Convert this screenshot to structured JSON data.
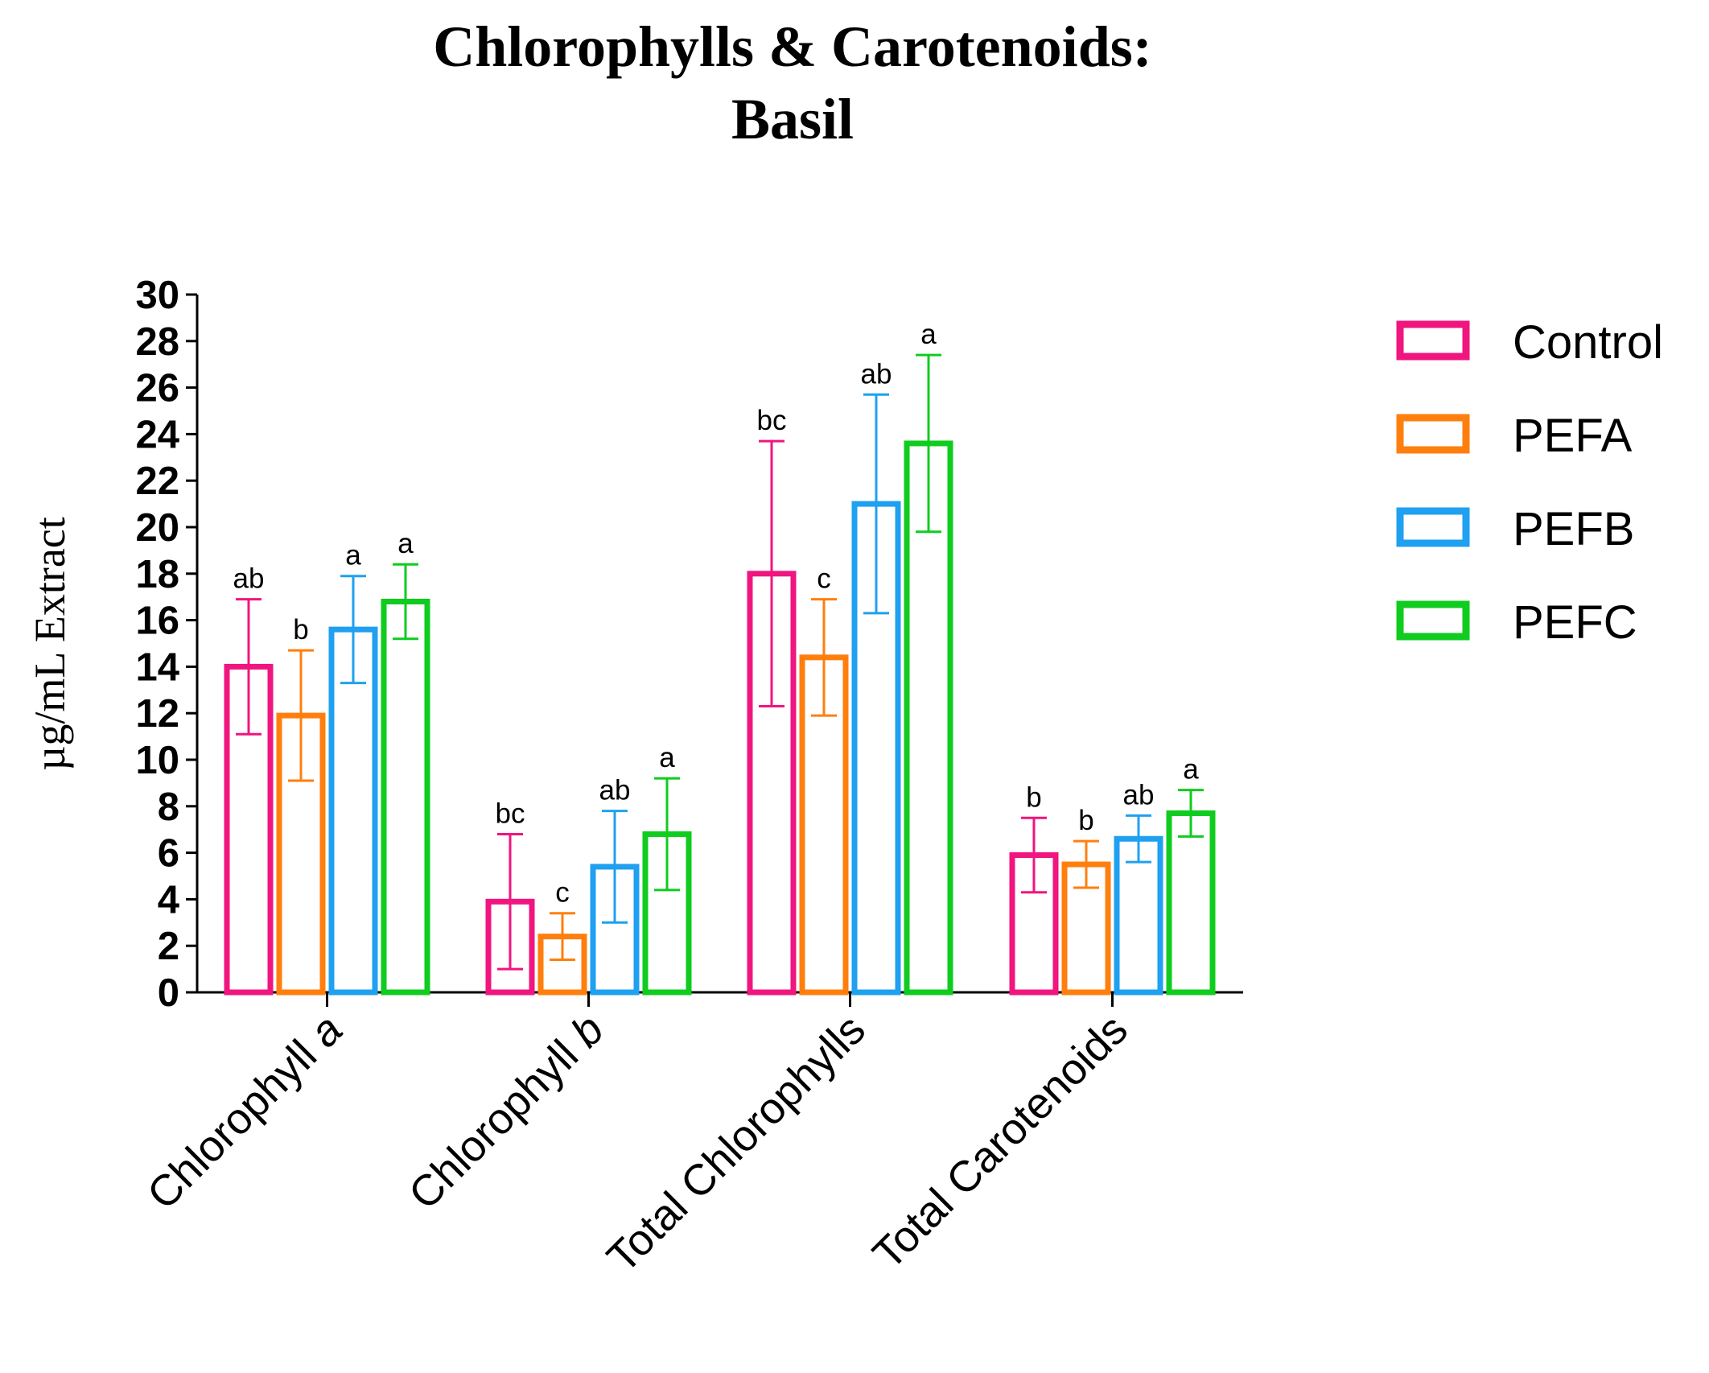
{
  "chart_data": {
    "type": "bar",
    "title": [
      "Chlorophylls & Carotenoids:",
      "Basil"
    ],
    "xlabel": "",
    "ylabel": "µg/mL Extract",
    "ylim": [
      0,
      30
    ],
    "yticks": [
      0,
      2,
      4,
      6,
      8,
      10,
      12,
      14,
      16,
      18,
      20,
      22,
      24,
      26,
      28,
      30
    ],
    "grid": false,
    "legend_position": "right",
    "categories": [
      {
        "label": "Chlorophyll ",
        "italic": "a"
      },
      {
        "label": "Chlorophyll ",
        "italic": "b"
      },
      {
        "label": "Total Chlorophylls",
        "italic": ""
      },
      {
        "label": "Total Carotenoids",
        "italic": ""
      }
    ],
    "series": [
      {
        "name": "Control",
        "color": "#f0157f",
        "values": [
          14.0,
          3.9,
          18.0,
          5.9
        ],
        "errors": [
          2.9,
          2.9,
          5.7,
          1.6
        ],
        "letters": [
          "ab",
          "bc",
          "bc",
          "b"
        ]
      },
      {
        "name": "PEFA",
        "color": "#ff7f0e",
        "values": [
          11.9,
          2.4,
          14.4,
          5.5
        ],
        "errors": [
          2.8,
          1.0,
          2.5,
          1.0
        ],
        "letters": [
          "b",
          "c",
          "c",
          "b"
        ]
      },
      {
        "name": "PEFB",
        "color": "#1fa0f0",
        "values": [
          15.6,
          5.4,
          21.0,
          6.6
        ],
        "errors": [
          2.3,
          2.4,
          4.7,
          1.0
        ],
        "letters": [
          "a",
          "ab",
          "ab",
          "ab"
        ]
      },
      {
        "name": "PEFC",
        "color": "#0fcc1f",
        "values": [
          16.8,
          6.8,
          23.6,
          7.7
        ],
        "errors": [
          1.6,
          2.4,
          3.8,
          1.0
        ],
        "letters": [
          "a",
          "a",
          "a",
          "a"
        ]
      }
    ]
  }
}
